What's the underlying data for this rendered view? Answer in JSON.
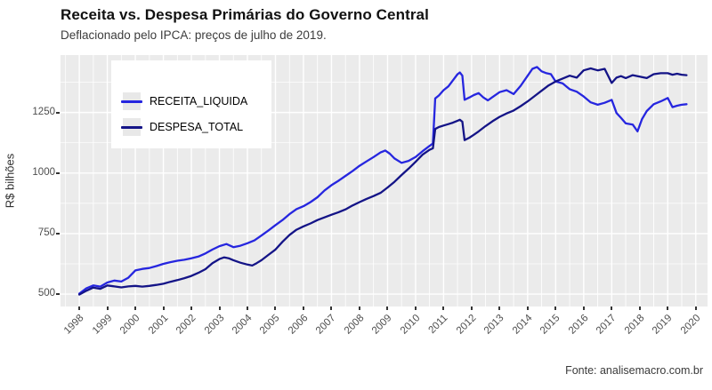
{
  "chart_data": {
    "type": "line",
    "title": "Receita vs. Despesa Primárias do Governo Central",
    "subtitle": "Deflacionado pelo IPCA: preços de julho de 2019.",
    "ylabel": "R$ bilhões",
    "xlabel": "",
    "source_note": "Fonte: analisemacro.com.br",
    "grid": "on",
    "legend_position": "top-left-inside",
    "colors": {
      "panel_background": "#EBEBEB",
      "gridline": "#FFFFFF",
      "tick_text": "#4e4e4e",
      "receita": "#2626DF",
      "despesa": "#141487"
    },
    "x_axis": {
      "min": 1997.33,
      "max": 2020.42,
      "major_ticks": [
        1998,
        1999,
        2000,
        2001,
        2002,
        2003,
        2004,
        2005,
        2006,
        2007,
        2008,
        2009,
        2010,
        2011,
        2012,
        2013,
        2014,
        2015,
        2016,
        2017,
        2018,
        2019,
        2020
      ],
      "minor_tick_offset": 0.5
    },
    "y_axis": {
      "min": 449,
      "max": 1487,
      "major_ticks": [
        500,
        750,
        1000,
        1250
      ],
      "minor_ticks": [
        625,
        875,
        1125,
        1375
      ]
    },
    "series": [
      {
        "name": "RECEITA_LIQUIDA",
        "color": "#2626DF",
        "points": [
          [
            1998.0,
            502
          ],
          [
            1998.25,
            524
          ],
          [
            1998.5,
            536
          ],
          [
            1998.75,
            531
          ],
          [
            1999.0,
            548
          ],
          [
            1999.25,
            556
          ],
          [
            1999.5,
            552
          ],
          [
            1999.75,
            568
          ],
          [
            2000.0,
            598
          ],
          [
            2000.25,
            604
          ],
          [
            2000.5,
            608
          ],
          [
            2000.75,
            616
          ],
          [
            2001.0,
            625
          ],
          [
            2001.25,
            632
          ],
          [
            2001.5,
            638
          ],
          [
            2001.75,
            642
          ],
          [
            2002.0,
            648
          ],
          [
            2002.25,
            655
          ],
          [
            2002.5,
            668
          ],
          [
            2002.75,
            684
          ],
          [
            2003.0,
            698
          ],
          [
            2003.25,
            707
          ],
          [
            2003.5,
            694
          ],
          [
            2003.75,
            700
          ],
          [
            2004.0,
            710
          ],
          [
            2004.25,
            722
          ],
          [
            2004.5,
            742
          ],
          [
            2004.75,
            763
          ],
          [
            2005.0,
            785
          ],
          [
            2005.25,
            806
          ],
          [
            2005.5,
            830
          ],
          [
            2005.75,
            851
          ],
          [
            2006.0,
            863
          ],
          [
            2006.25,
            880
          ],
          [
            2006.5,
            900
          ],
          [
            2006.75,
            928
          ],
          [
            2007.0,
            950
          ],
          [
            2007.25,
            968
          ],
          [
            2007.5,
            988
          ],
          [
            2007.75,
            1008
          ],
          [
            2008.0,
            1030
          ],
          [
            2008.25,
            1048
          ],
          [
            2008.5,
            1066
          ],
          [
            2008.75,
            1085
          ],
          [
            2008.92,
            1093
          ],
          [
            2009.08,
            1080
          ],
          [
            2009.25,
            1060
          ],
          [
            2009.5,
            1042
          ],
          [
            2009.75,
            1050
          ],
          [
            2010.0,
            1066
          ],
          [
            2010.25,
            1090
          ],
          [
            2010.5,
            1112
          ],
          [
            2010.62,
            1122
          ],
          [
            2010.7,
            1308
          ],
          [
            2010.83,
            1320
          ],
          [
            2011.0,
            1342
          ],
          [
            2011.17,
            1358
          ],
          [
            2011.33,
            1382
          ],
          [
            2011.5,
            1408
          ],
          [
            2011.58,
            1415
          ],
          [
            2011.67,
            1402
          ],
          [
            2011.75,
            1302
          ],
          [
            2011.92,
            1312
          ],
          [
            2012.08,
            1322
          ],
          [
            2012.25,
            1330
          ],
          [
            2012.42,
            1312
          ],
          [
            2012.58,
            1300
          ],
          [
            2012.75,
            1314
          ],
          [
            2013.0,
            1334
          ],
          [
            2013.25,
            1342
          ],
          [
            2013.5,
            1326
          ],
          [
            2013.75,
            1360
          ],
          [
            2014.0,
            1402
          ],
          [
            2014.17,
            1430
          ],
          [
            2014.33,
            1438
          ],
          [
            2014.5,
            1420
          ],
          [
            2014.67,
            1412
          ],
          [
            2014.83,
            1408
          ],
          [
            2015.0,
            1378
          ],
          [
            2015.25,
            1370
          ],
          [
            2015.5,
            1346
          ],
          [
            2015.75,
            1336
          ],
          [
            2016.0,
            1316
          ],
          [
            2016.25,
            1292
          ],
          [
            2016.5,
            1282
          ],
          [
            2016.75,
            1290
          ],
          [
            2017.0,
            1302
          ],
          [
            2017.17,
            1248
          ],
          [
            2017.33,
            1228
          ],
          [
            2017.5,
            1205
          ],
          [
            2017.75,
            1200
          ],
          [
            2017.92,
            1172
          ],
          [
            2018.08,
            1222
          ],
          [
            2018.25,
            1256
          ],
          [
            2018.5,
            1284
          ],
          [
            2018.75,
            1296
          ],
          [
            2019.0,
            1310
          ],
          [
            2019.17,
            1272
          ],
          [
            2019.33,
            1278
          ],
          [
            2019.5,
            1282
          ],
          [
            2019.67,
            1284
          ]
        ]
      },
      {
        "name": "DESPESA_TOTAL",
        "color": "#141487",
        "points": [
          [
            1998.0,
            498
          ],
          [
            1998.25,
            514
          ],
          [
            1998.5,
            527
          ],
          [
            1998.75,
            522
          ],
          [
            1999.0,
            536
          ],
          [
            1999.25,
            532
          ],
          [
            1999.5,
            528
          ],
          [
            1999.75,
            532
          ],
          [
            2000.0,
            534
          ],
          [
            2000.25,
            531
          ],
          [
            2000.5,
            534
          ],
          [
            2000.75,
            538
          ],
          [
            2001.0,
            543
          ],
          [
            2001.25,
            551
          ],
          [
            2001.5,
            558
          ],
          [
            2001.75,
            566
          ],
          [
            2002.0,
            575
          ],
          [
            2002.25,
            588
          ],
          [
            2002.5,
            603
          ],
          [
            2002.75,
            628
          ],
          [
            2003.0,
            645
          ],
          [
            2003.17,
            652
          ],
          [
            2003.33,
            648
          ],
          [
            2003.5,
            640
          ],
          [
            2003.75,
            630
          ],
          [
            2004.0,
            622
          ],
          [
            2004.17,
            618
          ],
          [
            2004.33,
            628
          ],
          [
            2004.5,
            640
          ],
          [
            2004.75,
            662
          ],
          [
            2005.0,
            684
          ],
          [
            2005.25,
            716
          ],
          [
            2005.5,
            744
          ],
          [
            2005.75,
            766
          ],
          [
            2006.0,
            780
          ],
          [
            2006.25,
            792
          ],
          [
            2006.5,
            806
          ],
          [
            2006.75,
            817
          ],
          [
            2007.0,
            828
          ],
          [
            2007.25,
            838
          ],
          [
            2007.5,
            850
          ],
          [
            2007.75,
            866
          ],
          [
            2008.0,
            880
          ],
          [
            2008.25,
            893
          ],
          [
            2008.5,
            905
          ],
          [
            2008.75,
            918
          ],
          [
            2009.0,
            940
          ],
          [
            2009.25,
            964
          ],
          [
            2009.5,
            992
          ],
          [
            2009.75,
            1018
          ],
          [
            2010.0,
            1046
          ],
          [
            2010.25,
            1076
          ],
          [
            2010.5,
            1096
          ],
          [
            2010.62,
            1102
          ],
          [
            2010.7,
            1182
          ],
          [
            2010.83,
            1190
          ],
          [
            2011.0,
            1196
          ],
          [
            2011.17,
            1202
          ],
          [
            2011.33,
            1208
          ],
          [
            2011.5,
            1216
          ],
          [
            2011.58,
            1220
          ],
          [
            2011.67,
            1212
          ],
          [
            2011.75,
            1136
          ],
          [
            2011.92,
            1146
          ],
          [
            2012.08,
            1158
          ],
          [
            2012.25,
            1172
          ],
          [
            2012.5,
            1194
          ],
          [
            2012.75,
            1214
          ],
          [
            2013.0,
            1232
          ],
          [
            2013.25,
            1246
          ],
          [
            2013.5,
            1258
          ],
          [
            2013.75,
            1276
          ],
          [
            2014.0,
            1296
          ],
          [
            2014.25,
            1318
          ],
          [
            2014.5,
            1340
          ],
          [
            2014.75,
            1362
          ],
          [
            2015.0,
            1378
          ],
          [
            2015.25,
            1390
          ],
          [
            2015.5,
            1402
          ],
          [
            2015.75,
            1394
          ],
          [
            2016.0,
            1424
          ],
          [
            2016.25,
            1432
          ],
          [
            2016.5,
            1424
          ],
          [
            2016.75,
            1430
          ],
          [
            2017.0,
            1372
          ],
          [
            2017.17,
            1394
          ],
          [
            2017.33,
            1400
          ],
          [
            2017.5,
            1392
          ],
          [
            2017.75,
            1404
          ],
          [
            2018.0,
            1398
          ],
          [
            2018.25,
            1392
          ],
          [
            2018.5,
            1408
          ],
          [
            2018.75,
            1412
          ],
          [
            2019.0,
            1412
          ],
          [
            2019.17,
            1406
          ],
          [
            2019.33,
            1410
          ],
          [
            2019.5,
            1406
          ],
          [
            2019.67,
            1404
          ]
        ]
      }
    ]
  }
}
